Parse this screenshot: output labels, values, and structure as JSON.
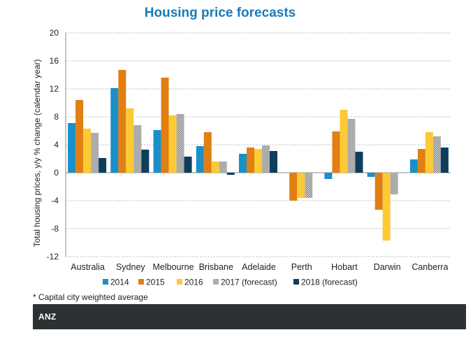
{
  "chart_data": {
    "type": "bar",
    "title": "Housing price forecasts",
    "ylabel": "Total housing prices, y/y % change (calendar year)",
    "xlabel": "",
    "ylim": [
      -12,
      20
    ],
    "yticks": [
      20,
      16,
      12,
      8,
      4,
      0,
      -4,
      -8,
      -12
    ],
    "ytick_labels": [
      "20",
      "16",
      "12",
      "8",
      "4",
      "0",
      "-4",
      "-8",
      "-12"
    ],
    "grid": true,
    "legend_position": "bottom",
    "categories": [
      "Australia",
      "Sydney",
      "Melbourne",
      "Brisbane",
      "Adelaide",
      "Perth",
      "Hobart",
      "Darwin",
      "Canberra"
    ],
    "series": [
      {
        "name": "2014",
        "color": "#1a8fca",
        "pattern": "solid",
        "values": [
          7.1,
          12.1,
          6.1,
          3.8,
          2.7,
          0.0,
          -0.9,
          -0.6,
          1.9
        ]
      },
      {
        "name": "2015",
        "color": "#e07f12",
        "pattern": "solid",
        "values": [
          10.4,
          14.7,
          13.6,
          5.8,
          3.6,
          -4.0,
          5.9,
          -5.3,
          3.4
        ]
      },
      {
        "name": "2016",
        "color": "#fdc934",
        "pattern": "solid",
        "values": [
          6.3,
          9.2,
          8.2,
          1.6,
          3.4,
          -3.6,
          9.0,
          -9.7,
          5.8
        ]
      },
      {
        "name": "2017 (forecast)",
        "color": "#a8a8a8",
        "pattern": "dotted",
        "values": [
          5.7,
          6.8,
          8.4,
          1.6,
          3.9,
          -3.6,
          7.7,
          -3.1,
          5.2
        ]
      },
      {
        "name": "2018 (forecast)",
        "color": "#0f3d5c",
        "pattern": "solid",
        "values": [
          2.1,
          3.3,
          2.3,
          -0.3,
          3.1,
          0.0,
          3.0,
          0.0,
          3.6
        ]
      }
    ],
    "footnote": "* Capital city weighted average"
  },
  "footer": {
    "brand": "ANZ"
  }
}
